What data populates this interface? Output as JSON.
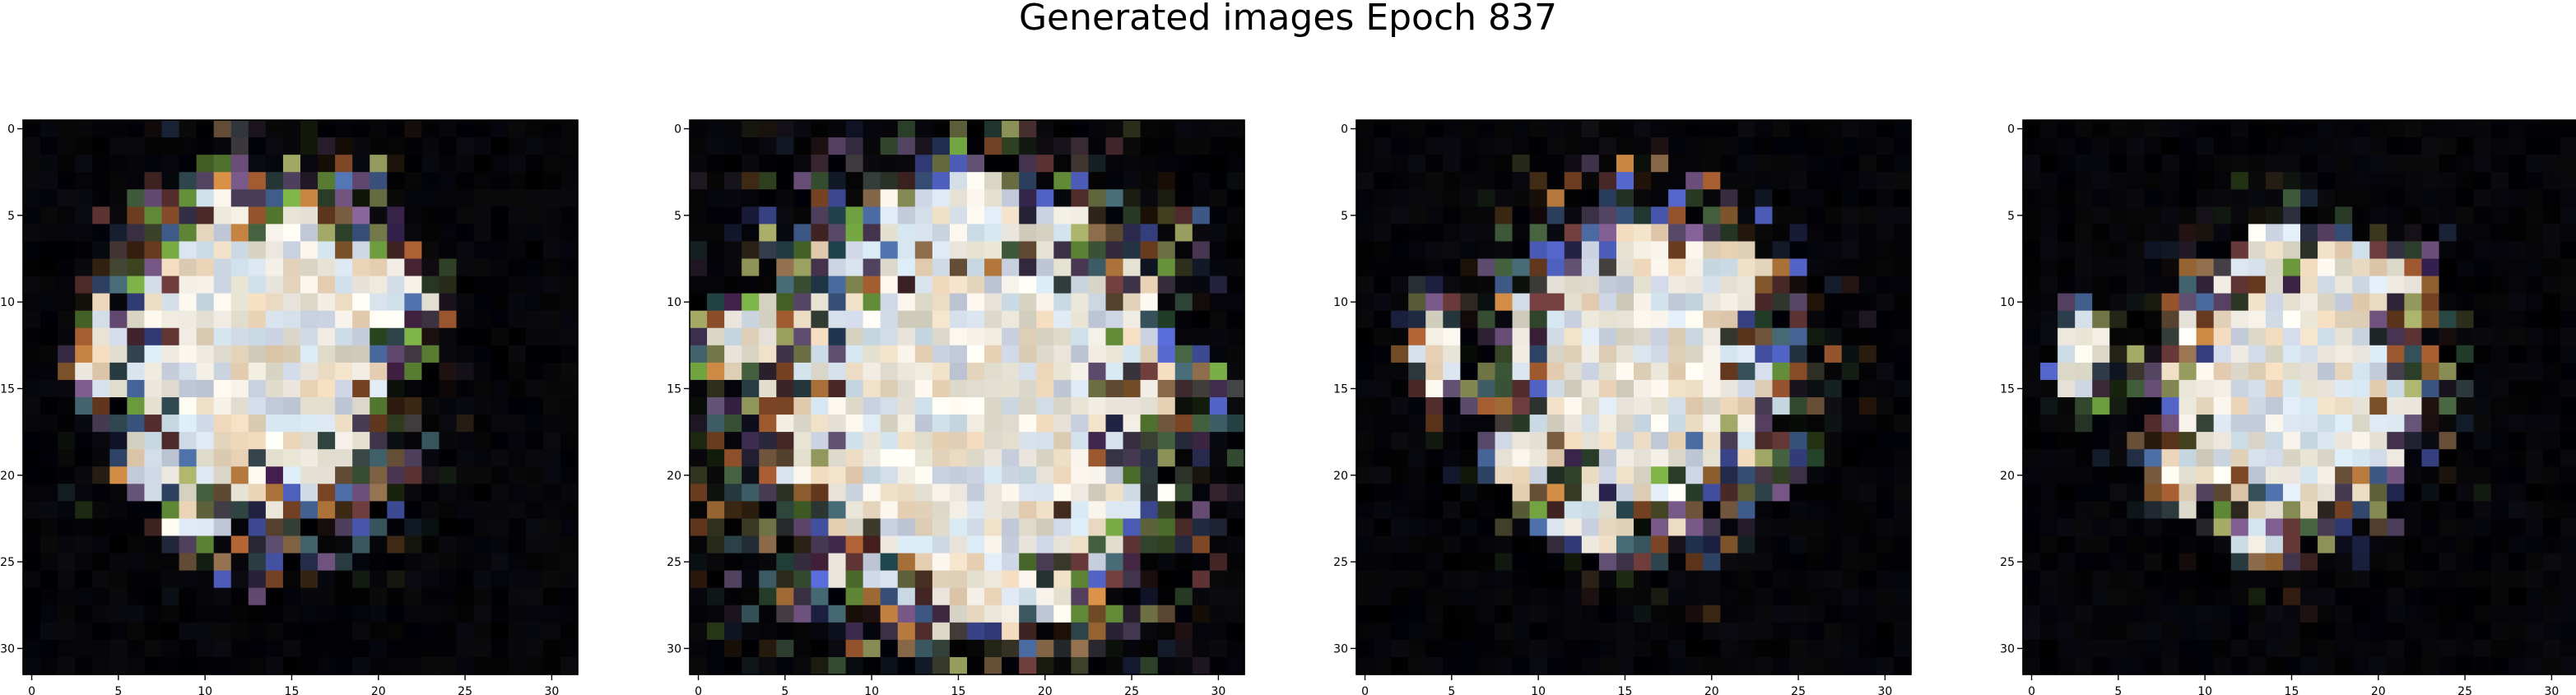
{
  "figure": {
    "title": "Generated images Epoch 837"
  },
  "chart_data": [
    {
      "type": "heatmap",
      "title": "",
      "xticks": [
        "0",
        "5",
        "10",
        "15",
        "20",
        "25",
        "30"
      ],
      "yticks": [
        "0",
        "5",
        "10",
        "15",
        "20",
        "25",
        "30"
      ],
      "xlim": [
        -0.5,
        31.5
      ],
      "ylim": [
        31.5,
        -0.5
      ],
      "grid_size": [
        32,
        32
      ],
      "image_description": "fuzzy light-coloured blob with speckled multicolour border on black background",
      "palette": [
        "#f2eee6",
        "#e6e2d6",
        "#d8e2ec",
        "#e8d8c0",
        "#c8d0e0",
        "#f6f2ea",
        "#dcd8c8",
        "#cfe0ea",
        "#ead2b6"
      ],
      "edge_palette": [
        "#5a4a6a",
        "#3f5a3a",
        "#8a6a4a",
        "#6a3a3a",
        "#4a6aa0",
        "#9aa060",
        "#c08040",
        "#7a5a8a",
        "#40606a",
        "#a05a30",
        "#5060c0",
        "#70a040"
      ],
      "blob": [
        13,
        13,
        9,
        11,
        0.7
      ],
      "lobes": [
        [
          19,
          9,
          4.5,
          3.5
        ],
        [
          15,
          7,
          2.5,
          2.5
        ],
        [
          4,
          13,
          1.8,
          3.5
        ],
        [
          7,
          19,
          2,
          2.5
        ],
        [
          9,
          23,
          2.5,
          1.5
        ]
      ],
      "seed": 11
    },
    {
      "type": "heatmap",
      "title": "",
      "xticks": [
        "0",
        "5",
        "10",
        "15",
        "20",
        "25",
        "30"
      ],
      "yticks": [
        "0",
        "5",
        "10",
        "15",
        "20",
        "25",
        "30"
      ],
      "xlim": [
        -0.5,
        31.5
      ],
      "ylim": [
        31.5,
        -0.5
      ],
      "grid_size": [
        32,
        32
      ],
      "image_description": "large bright speckled blob filling most of the frame on black background",
      "palette": [
        "#f2eee6",
        "#e6e2d6",
        "#d8e2ec",
        "#e8d8c0",
        "#c8d0e0",
        "#f6f2ea",
        "#dcd8c8",
        "#cfe0ea",
        "#ead2b6"
      ],
      "edge_palette": [
        "#5a4a6a",
        "#3f5a3a",
        "#8a6a4a",
        "#6a3a3a",
        "#4a6aa0",
        "#9aa060",
        "#c08040",
        "#7a5a8a",
        "#40606a",
        "#a05a30",
        "#5060c0",
        "#70a040"
      ],
      "blob": [
        15.5,
        16,
        13.5,
        14.5,
        0.9
      ],
      "lobes": [
        [
          15,
          5,
          5,
          3
        ],
        [
          3,
          12,
          3,
          3
        ],
        [
          17,
          27,
          5,
          3
        ]
      ],
      "seed": 23
    },
    {
      "type": "heatmap",
      "title": "",
      "xticks": [
        "0",
        "5",
        "10",
        "15",
        "20",
        "25",
        "30"
      ],
      "yticks": [
        "0",
        "5",
        "10",
        "15",
        "20",
        "25",
        "30"
      ],
      "xlim": [
        -0.5,
        31.5
      ],
      "ylim": [
        31.5,
        -0.5
      ],
      "grid_size": [
        32,
        32
      ],
      "image_description": "fuzzy light-coloured blob with speckled multicolour border on black background",
      "palette": [
        "#f2eee6",
        "#e6e2d6",
        "#d8e2ec",
        "#e8d8c0",
        "#c8d0e0",
        "#f6f2ea",
        "#dcd8c8",
        "#cfe0ea",
        "#ead2b6"
      ],
      "edge_palette": [
        "#5a4a6a",
        "#3f5a3a",
        "#8a6a4a",
        "#6a3a3a",
        "#4a6aa0",
        "#9aa060",
        "#c08040",
        "#7a5a8a",
        "#40606a",
        "#a05a30",
        "#5060c0",
        "#70a040"
      ],
      "blob": [
        16,
        14,
        9,
        10,
        0.7
      ],
      "lobes": [
        [
          20,
          9,
          4.5,
          3.5
        ],
        [
          16,
          7,
          2.5,
          2.5
        ],
        [
          4,
          13,
          1.8,
          3.5
        ],
        [
          9,
          19,
          2,
          2.5
        ],
        [
          13,
          23,
          3,
          2
        ]
      ],
      "seed": 37
    },
    {
      "type": "heatmap",
      "title": "",
      "xticks": [
        "0",
        "5",
        "10",
        "15",
        "20",
        "25",
        "30"
      ],
      "yticks": [
        "0",
        "5",
        "10",
        "15",
        "20",
        "25",
        "30"
      ],
      "xlim": [
        -0.5,
        31.5
      ],
      "ylim": [
        31.5,
        -0.5
      ],
      "grid_size": [
        32,
        32
      ],
      "image_description": "fuzzy light-coloured blob with speckled multicolour border on black background",
      "palette": [
        "#f2eee6",
        "#e6e2d6",
        "#d8e2ec",
        "#e8d8c0",
        "#c8d0e0",
        "#f6f2ea",
        "#dcd8c8",
        "#cfe0ea",
        "#ead2b6"
      ],
      "edge_palette": [
        "#5a4a6a",
        "#3f5a3a",
        "#8a6a4a",
        "#6a3a3a",
        "#4a6aa0",
        "#9aa060",
        "#c08040",
        "#7a5a8a",
        "#40606a",
        "#a05a30",
        "#5060c0",
        "#70a040"
      ],
      "blob": [
        15,
        15,
        8,
        9,
        0.7
      ],
      "lobes": [
        [
          18,
          9,
          5,
          3.5
        ],
        [
          14,
          7,
          2,
          2
        ],
        [
          3,
          13,
          1.8,
          3.5
        ],
        [
          9,
          20,
          2.5,
          2.5
        ],
        [
          13,
          24,
          2,
          1.5
        ]
      ],
      "seed": 53
    }
  ]
}
